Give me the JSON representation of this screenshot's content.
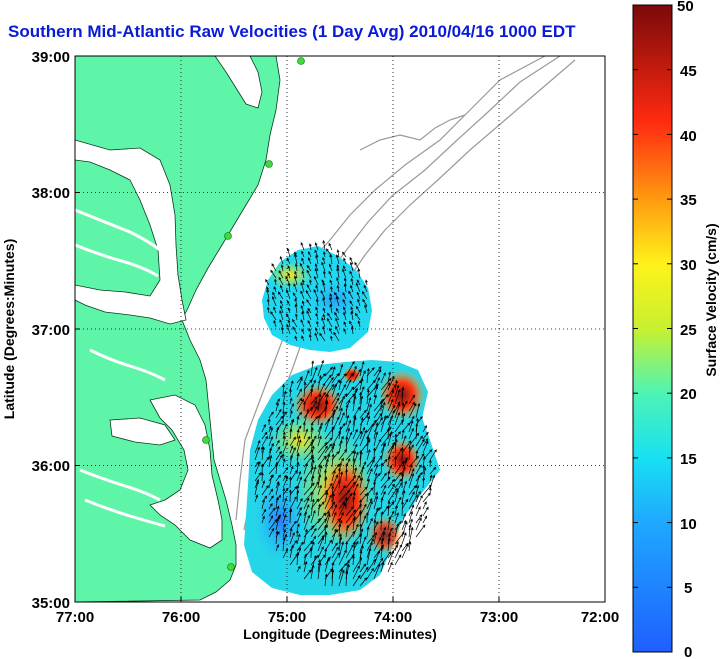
{
  "title": "Southern Mid-Atlantic Raw Velocities (1 Day Avg) 2010/04/16 1000 EDT",
  "x_axis": {
    "label": "Longitude (Degrees:Minutes)",
    "ticks": [
      "77:00",
      "76:00",
      "75:00",
      "74:00",
      "73:00",
      "72:00"
    ]
  },
  "y_axis": {
    "label": "Latitude (Degrees:Minutes)",
    "ticks": [
      "39:00",
      "38:00",
      "37:00",
      "36:00",
      "35:00"
    ]
  },
  "colorbar": {
    "label": "Surface Velocity (cm/s)",
    "ticks": [
      "50",
      "45",
      "40",
      "35",
      "30",
      "25",
      "20",
      "15",
      "10",
      "5",
      "0"
    ],
    "min": 0,
    "max": 50
  },
  "colors": {
    "land": "#5ef5a8",
    "water": "#ffffff",
    "grid": "#000000",
    "bathymetry": "#9a9a9a",
    "station": "#3ddc3d",
    "title": "#0a1bd6"
  }
}
